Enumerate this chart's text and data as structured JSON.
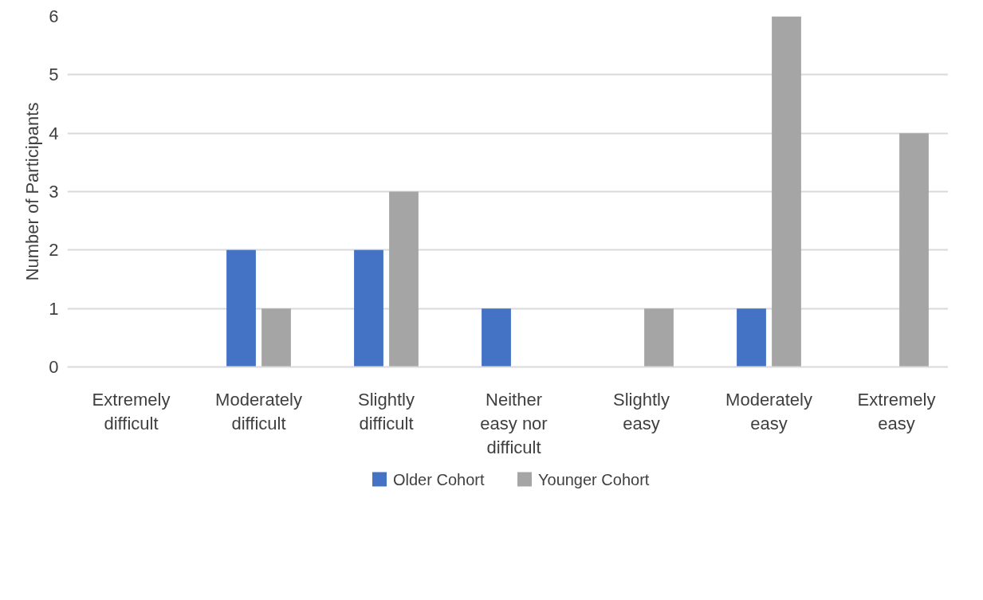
{
  "chart_data": {
    "type": "bar",
    "ylabel": "Number of Participants",
    "categories": [
      "Extremely difficult",
      "Moderately difficult",
      "Slightly difficult",
      "Neither easy nor difficult",
      "Slightly easy",
      "Moderately easy",
      "Extremely easy"
    ],
    "series": [
      {
        "name": "Older Cohort",
        "color": "#4472c4",
        "values": [
          0,
          2,
          2,
          1,
          0,
          1,
          0
        ]
      },
      {
        "name": "Younger Cohort",
        "color": "#a5a5a5",
        "values": [
          0,
          1,
          3,
          0,
          1,
          6,
          4
        ]
      }
    ],
    "ylim": [
      0,
      6
    ],
    "yticks": [
      0,
      1,
      2,
      3,
      4,
      5,
      6
    ],
    "grid": "y",
    "legend": "bottom"
  }
}
